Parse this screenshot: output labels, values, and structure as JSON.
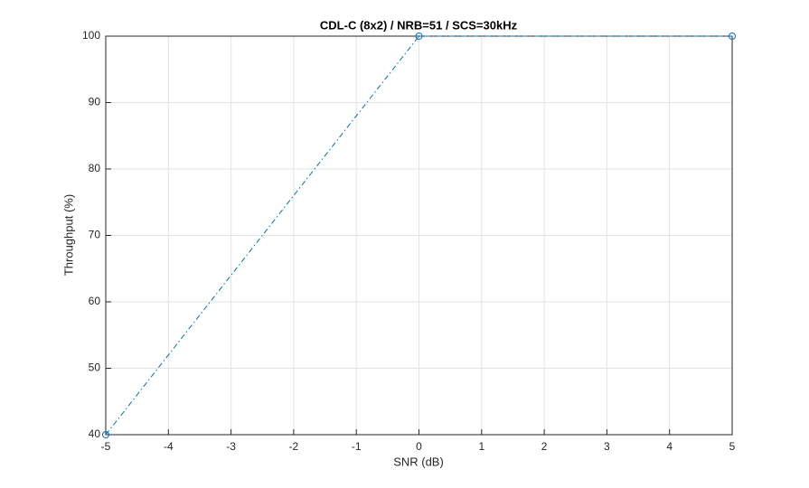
{
  "chart_data": {
    "type": "line",
    "title": "CDL-C (8x2) / NRB=51 / SCS=30kHz",
    "xlabel": "SNR (dB)",
    "ylabel": "Throughput (%)",
    "x": [
      -5,
      0,
      5
    ],
    "values": [
      40,
      100,
      100
    ],
    "color": "#0072bd",
    "xlim": [
      -5,
      5
    ],
    "xticks": [
      -5,
      -4,
      -3,
      -2,
      -1,
      0,
      1,
      2,
      3,
      4,
      5
    ],
    "ylim": [
      40,
      100
    ],
    "yticks": [
      40,
      50,
      60,
      70,
      80,
      90,
      100
    ],
    "grid": true
  }
}
